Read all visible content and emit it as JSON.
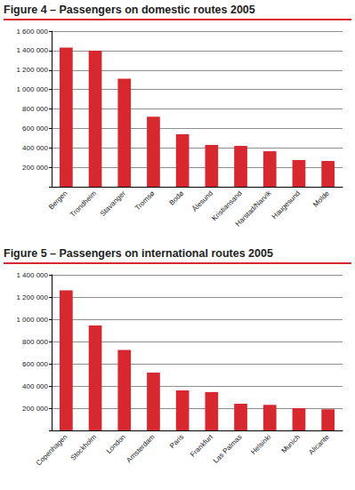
{
  "chart_data": [
    {
      "type": "bar",
      "title": "Figure 4 – Passengers on domestic routes 2005",
      "categories": [
        "Bergen",
        "Trondheim",
        "Stavanger",
        "Tromsø",
        "Bodø",
        "Ålesund",
        "Kristiansand",
        "Harstad/Narvik",
        "Haugesund",
        "Molde"
      ],
      "values": [
        1430000,
        1400000,
        1110000,
        720000,
        540000,
        430000,
        420000,
        365000,
        275000,
        265000
      ],
      "color": "#d6282e",
      "ylim": [
        0,
        1600000
      ],
      "yticks": [
        {
          "value": 200000,
          "label": "200 000"
        },
        {
          "value": 400000,
          "label": "400 000"
        },
        {
          "value": 600000,
          "label": "600 000"
        },
        {
          "value": 800000,
          "label": "800 000"
        },
        {
          "value": 1000000,
          "label": "1 000 000"
        },
        {
          "value": 1200000,
          "label": "1 200 000"
        },
        {
          "value": 1400000,
          "label": "1 400 000"
        },
        {
          "value": 1600000,
          "label": "1 600 000"
        }
      ],
      "grid": true
    },
    {
      "type": "bar",
      "title": "Figure 5 – Passengers on international routes 2005",
      "categories": [
        "Copenhagen",
        "Stockholm",
        "London",
        "Amsterdam",
        "Paris",
        "Frankfurt",
        "Las Palmas",
        "Helsinki",
        "Munich",
        "Alicante"
      ],
      "values": [
        1260000,
        945000,
        725000,
        520000,
        360000,
        345000,
        240000,
        230000,
        200000,
        190000
      ],
      "color": "#d6282e",
      "ylim": [
        0,
        1400000
      ],
      "yticks": [
        {
          "value": 200000,
          "label": "200 000"
        },
        {
          "value": 400000,
          "label": "400 000"
        },
        {
          "value": 600000,
          "label": "600 000"
        },
        {
          "value": 800000,
          "label": "800 000"
        },
        {
          "value": 1000000,
          "label": "1 000 000"
        },
        {
          "value": 1200000,
          "label": "1 200 000"
        },
        {
          "value": 1400000,
          "label": "1 400 000"
        }
      ],
      "grid": true
    }
  ]
}
